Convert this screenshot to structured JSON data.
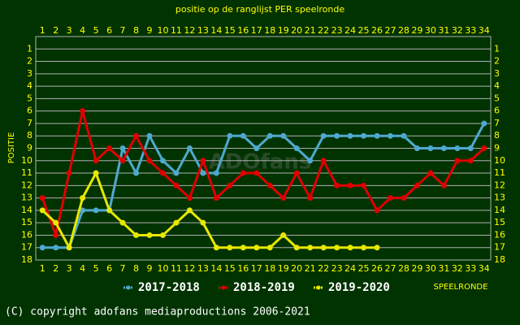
{
  "chart_data": {
    "type": "line",
    "title": "positie op de ranglijst PER speelronde",
    "y_label": "POSITIE",
    "x_label": "SPEELRONDE",
    "watermark": "ADOfans",
    "footer": "(C) copyright adofans mediaproductions 2006-2021",
    "x": [
      1,
      2,
      3,
      4,
      5,
      6,
      7,
      8,
      9,
      10,
      11,
      12,
      13,
      14,
      15,
      16,
      17,
      18,
      19,
      20,
      21,
      22,
      23,
      24,
      25,
      26,
      27,
      28,
      29,
      30,
      31,
      32,
      33,
      34
    ],
    "xlim": [
      0.5,
      34.5
    ],
    "xticks": [
      1,
      2,
      3,
      4,
      5,
      6,
      7,
      8,
      9,
      10,
      11,
      12,
      13,
      14,
      15,
      16,
      17,
      18,
      19,
      20,
      21,
      22,
      23,
      24,
      25,
      26,
      27,
      28,
      29,
      30,
      31,
      32,
      33,
      34
    ],
    "ylim": [
      0,
      18
    ],
    "yticks": [
      1,
      2,
      3,
      4,
      5,
      6,
      7,
      8,
      9,
      10,
      11,
      12,
      13,
      14,
      15,
      16,
      17,
      18
    ],
    "y_inverted": true,
    "grid": true,
    "legend": "bottom",
    "series": [
      {
        "name": "2017-2018",
        "color": "#4fa8d0",
        "values": [
          17,
          17,
          17,
          14,
          14,
          14,
          9,
          11,
          8,
          10,
          11,
          9,
          11,
          11,
          8,
          8,
          9,
          8,
          8,
          9,
          10,
          8,
          8,
          8,
          8,
          8,
          8,
          8,
          9,
          9,
          9,
          9,
          9,
          7
        ]
      },
      {
        "name": "2018-2019",
        "color": "#e00000",
        "values": [
          13,
          16,
          11,
          6,
          10,
          9,
          10,
          8,
          10,
          11,
          12,
          13,
          10,
          13,
          12,
          11,
          11,
          12,
          13,
          11,
          13,
          10,
          12,
          12,
          12,
          14,
          13,
          13,
          12,
          11,
          12,
          10,
          10,
          9
        ]
      },
      {
        "name": "2019-2020",
        "color": "#e8e800",
        "values": [
          14,
          15,
          17,
          13,
          11,
          14,
          15,
          16,
          16,
          16,
          15,
          14,
          15,
          17,
          17,
          17,
          17,
          17,
          16,
          17,
          17,
          17,
          17,
          17,
          17,
          17,
          null,
          null,
          null,
          null,
          null,
          null,
          null,
          null
        ]
      }
    ]
  }
}
